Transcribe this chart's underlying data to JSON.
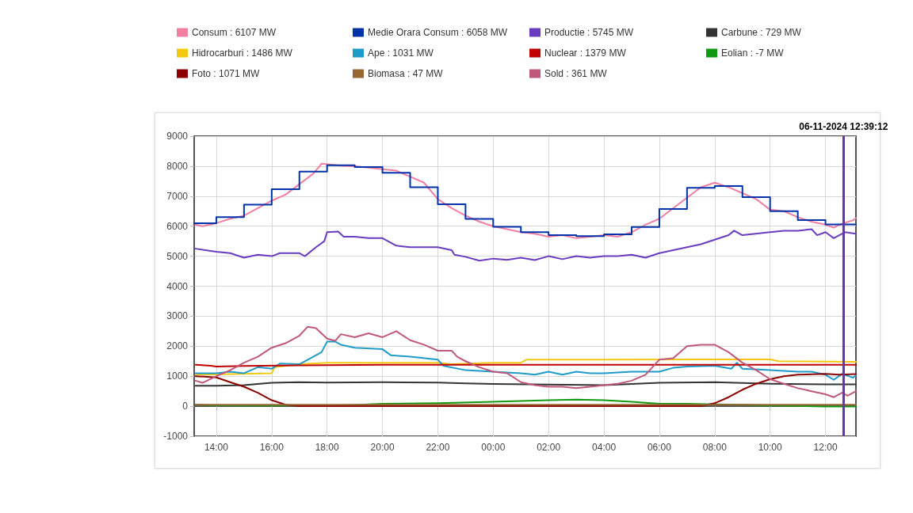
{
  "chart_data": {
    "type": "line",
    "xlim": [
      "2024-11-05T13:12",
      "2024-11-06T13:06"
    ],
    "xticks": [
      {
        "value": "2024-11-05T14:00",
        "label": "14:00"
      },
      {
        "value": "2024-11-05T16:00",
        "label": "16:00"
      },
      {
        "value": "2024-11-05T18:00",
        "label": "18:00"
      },
      {
        "value": "2024-11-05T20:00",
        "label": "20:00"
      },
      {
        "value": "2024-11-05T22:00",
        "label": "22:00"
      },
      {
        "value": "2024-11-06T00:00",
        "label": "00:00"
      },
      {
        "value": "2024-11-06T02:00",
        "label": "02:00"
      },
      {
        "value": "2024-11-06T04:00",
        "label": "04:00"
      },
      {
        "value": "2024-11-06T06:00",
        "label": "06:00"
      },
      {
        "value": "2024-11-06T08:00",
        "label": "08:00"
      },
      {
        "value": "2024-11-06T10:00",
        "label": "10:00"
      },
      {
        "value": "2024-11-06T12:00",
        "label": "12:00"
      }
    ],
    "ylim": [
      -1000,
      9000
    ],
    "yticks": [
      -1000,
      0,
      1000,
      2000,
      3000,
      4000,
      5000,
      6000,
      7000,
      8000,
      9000
    ],
    "grid": true,
    "legend": "top",
    "marker": "none",
    "line_style": "solid",
    "ref_lines": [
      {
        "axis": "x",
        "value": "2024-11-06T12:39",
        "label": "06-11-2024 12:39:12",
        "color": "#6633bb"
      }
    ],
    "series": [
      {
        "name": "Consum : 6107 MW",
        "color": "#f07fa0",
        "x": [
          "2024-11-05T13:15",
          "2024-11-05T13:30",
          "2024-11-05T14:00",
          "2024-11-05T14:30",
          "2024-11-05T15:00",
          "2024-11-05T15:30",
          "2024-11-05T16:00",
          "2024-11-05T16:30",
          "2024-11-05T17:00",
          "2024-11-05T17:30",
          "2024-11-05T17:48",
          "2024-11-05T18:30",
          "2024-11-05T19:00",
          "2024-11-05T19:30",
          "2024-11-05T20:00",
          "2024-11-05T20:30",
          "2024-11-05T21:00",
          "2024-11-05T21:30",
          "2024-11-05T22:00",
          "2024-11-05T22:30",
          "2024-11-05T23:00",
          "2024-11-05T23:30",
          "2024-11-06T00:00",
          "2024-11-06T00:30",
          "2024-11-06T01:00",
          "2024-11-06T01:30",
          "2024-11-06T02:00",
          "2024-11-06T02:30",
          "2024-11-06T03:00",
          "2024-11-06T03:30",
          "2024-11-06T04:00",
          "2024-11-06T04:30",
          "2024-11-06T05:00",
          "2024-11-06T05:30",
          "2024-11-06T06:00",
          "2024-11-06T06:30",
          "2024-11-06T07:00",
          "2024-11-06T07:30",
          "2024-11-06T08:00",
          "2024-11-06T08:30",
          "2024-11-06T09:00",
          "2024-11-06T09:30",
          "2024-11-06T10:00",
          "2024-11-06T10:30",
          "2024-11-06T11:00",
          "2024-11-06T11:30",
          "2024-11-06T12:00",
          "2024-11-06T12:18",
          "2024-11-06T12:30",
          "2024-11-06T13:00",
          "2024-11-06T13:06"
        ],
        "values": [
          6050,
          6000,
          6100,
          6250,
          6350,
          6600,
          6850,
          7050,
          7400,
          7750,
          8080,
          8020,
          8000,
          7950,
          7900,
          7850,
          7650,
          7450,
          6900,
          6600,
          6350,
          6150,
          6000,
          5900,
          5800,
          5750,
          5650,
          5700,
          5600,
          5650,
          5700,
          5650,
          5800,
          6050,
          6250,
          6600,
          6950,
          7300,
          7450,
          7300,
          7100,
          6900,
          6550,
          6500,
          6300,
          6150,
          6050,
          5950,
          6050,
          6200,
          6270
        ]
      },
      {
        "name": "Medie Orara Consum : 6058 MW",
        "color": "#0033aa",
        "type": "step",
        "x": [
          "2024-11-05T13:12",
          "2024-11-05T14:00",
          "2024-11-05T15:00",
          "2024-11-05T16:00",
          "2024-11-05T17:00",
          "2024-11-05T18:00",
          "2024-11-05T19:00",
          "2024-11-05T20:00",
          "2024-11-05T21:00",
          "2024-11-05T22:00",
          "2024-11-05T23:00",
          "2024-11-06T00:00",
          "2024-11-06T01:00",
          "2024-11-06T02:00",
          "2024-11-06T03:00",
          "2024-11-06T04:00",
          "2024-11-06T05:00",
          "2024-11-06T06:00",
          "2024-11-06T07:00",
          "2024-11-06T08:00",
          "2024-11-06T09:00",
          "2024-11-06T10:00",
          "2024-11-06T11:00",
          "2024-11-06T12:00",
          "2024-11-06T13:06"
        ],
        "values": [
          6100,
          6300,
          6720,
          7230,
          7820,
          8030,
          7970,
          7780,
          7300,
          6730,
          6240,
          5980,
          5800,
          5700,
          5670,
          5730,
          5970,
          6570,
          7280,
          7340,
          6970,
          6500,
          6200,
          6060,
          6060
        ]
      },
      {
        "name": "Productie : 5745 MW",
        "color": "#6a3cc0",
        "x": [
          "2024-11-05T13:15",
          "2024-11-05T14:00",
          "2024-11-05T14:30",
          "2024-11-05T15:00",
          "2024-11-05T15:30",
          "2024-11-05T16:00",
          "2024-11-05T16:18",
          "2024-11-05T17:00",
          "2024-11-05T17:12",
          "2024-11-05T17:36",
          "2024-11-05T17:54",
          "2024-11-05T18:00",
          "2024-11-05T18:24",
          "2024-11-05T18:36",
          "2024-11-05T19:00",
          "2024-11-05T19:30",
          "2024-11-05T20:00",
          "2024-11-05T20:30",
          "2024-11-05T21:00",
          "2024-11-05T22:00",
          "2024-11-05T22:30",
          "2024-11-05T22:36",
          "2024-11-05T23:00",
          "2024-11-05T23:30",
          "2024-11-06T00:00",
          "2024-11-06T00:30",
          "2024-11-06T01:00",
          "2024-11-06T01:30",
          "2024-11-06T02:00",
          "2024-11-06T02:30",
          "2024-11-06T03:00",
          "2024-11-06T03:30",
          "2024-11-06T04:00",
          "2024-11-06T04:30",
          "2024-11-06T05:00",
          "2024-11-06T05:30",
          "2024-11-06T06:00",
          "2024-11-06T06:30",
          "2024-11-06T07:00",
          "2024-11-06T07:30",
          "2024-11-06T08:00",
          "2024-11-06T08:30",
          "2024-11-06T08:42",
          "2024-11-06T09:00",
          "2024-11-06T10:00",
          "2024-11-06T10:30",
          "2024-11-06T11:00",
          "2024-11-06T11:30",
          "2024-11-06T11:42",
          "2024-11-06T12:00",
          "2024-11-06T12:18",
          "2024-11-06T12:42",
          "2024-11-06T13:06"
        ],
        "values": [
          5250,
          5150,
          5100,
          4950,
          5050,
          5000,
          5100,
          5100,
          5000,
          5300,
          5500,
          5800,
          5820,
          5650,
          5650,
          5600,
          5600,
          5350,
          5300,
          5300,
          5200,
          5050,
          4980,
          4850,
          4920,
          4880,
          4950,
          4870,
          5000,
          4900,
          5000,
          4950,
          5000,
          5000,
          5050,
          4950,
          5100,
          5200,
          5300,
          5400,
          5550,
          5700,
          5850,
          5700,
          5800,
          5850,
          5850,
          5900,
          5700,
          5800,
          5600,
          5800,
          5750
        ]
      },
      {
        "name": "Carbune : 729 MW",
        "color": "#333333",
        "x": [
          "2024-11-05T13:15",
          "2024-11-05T14:00",
          "2024-11-05T15:00",
          "2024-11-05T16:00",
          "2024-11-05T17:00",
          "2024-11-05T18:00",
          "2024-11-05T20:00",
          "2024-11-05T22:00",
          "2024-11-05T23:00",
          "2024-11-06T00:00",
          "2024-11-06T02:00",
          "2024-11-06T04:00",
          "2024-11-06T06:00",
          "2024-11-06T08:00",
          "2024-11-06T10:00",
          "2024-11-06T12:00",
          "2024-11-06T13:06"
        ],
        "values": [
          680,
          680,
          700,
          780,
          800,
          790,
          800,
          790,
          760,
          740,
          720,
          700,
          780,
          800,
          750,
          730,
          730
        ]
      },
      {
        "name": "Hidrocarburi : 1486 MW",
        "color": "#f2c811",
        "x": [
          "2024-11-05T13:15",
          "2024-11-05T16:00",
          "2024-11-05T16:06",
          "2024-11-05T17:00",
          "2024-11-05T18:00",
          "2024-11-05T22:00",
          "2024-11-05T22:30",
          "2024-11-06T00:00",
          "2024-11-06T01:00",
          "2024-11-06T01:12",
          "2024-11-06T08:00",
          "2024-11-06T10:00",
          "2024-11-06T10:18",
          "2024-11-06T13:06"
        ],
        "values": [
          1050,
          1100,
          1300,
          1400,
          1450,
          1450,
          1400,
          1450,
          1450,
          1550,
          1560,
          1560,
          1500,
          1480
        ]
      },
      {
        "name": "Ape : 1031 MW",
        "color": "#1e9bc8",
        "x": [
          "2024-11-05T13:15",
          "2024-11-05T14:00",
          "2024-11-05T14:30",
          "2024-11-05T15:00",
          "2024-11-05T15:30",
          "2024-11-05T16:00",
          "2024-11-05T16:18",
          "2024-11-05T17:00",
          "2024-11-05T17:30",
          "2024-11-05T17:48",
          "2024-11-05T18:00",
          "2024-11-05T18:18",
          "2024-11-05T18:30",
          "2024-11-05T19:00",
          "2024-11-05T20:00",
          "2024-11-05T20:18",
          "2024-11-05T21:00",
          "2024-11-05T22:00",
          "2024-11-05T22:12",
          "2024-11-05T23:00",
          "2024-11-06T00:00",
          "2024-11-06T01:00",
          "2024-11-06T01:30",
          "2024-11-06T02:00",
          "2024-11-06T02:30",
          "2024-11-06T03:00",
          "2024-11-06T03:30",
          "2024-11-06T04:00",
          "2024-11-06T05:00",
          "2024-11-06T06:00",
          "2024-11-06T06:30",
          "2024-11-06T07:00",
          "2024-11-06T08:00",
          "2024-11-06T08:36",
          "2024-11-06T08:48",
          "2024-11-06T09:00",
          "2024-11-06T10:00",
          "2024-11-06T11:00",
          "2024-11-06T11:30",
          "2024-11-06T12:00",
          "2024-11-06T12:18",
          "2024-11-06T12:36",
          "2024-11-06T13:00",
          "2024-11-06T13:06"
        ],
        "values": [
          1100,
          1100,
          1150,
          1100,
          1300,
          1250,
          1420,
          1400,
          1650,
          1800,
          2150,
          2150,
          2050,
          1950,
          1900,
          1700,
          1650,
          1550,
          1350,
          1200,
          1150,
          1100,
          1050,
          1150,
          1050,
          1150,
          1100,
          1100,
          1150,
          1150,
          1280,
          1320,
          1350,
          1250,
          1450,
          1250,
          1200,
          1150,
          1150,
          1050,
          880,
          1080,
          950,
          1030
        ]
      },
      {
        "name": "Nuclear : 1379 MW",
        "color": "#c00000",
        "x": [
          "2024-11-05T13:15",
          "2024-11-05T13:48",
          "2024-11-05T14:00",
          "2024-11-05T15:00",
          "2024-11-05T17:00",
          "2024-11-05T20:00",
          "2024-11-06T13:06"
        ],
        "values": [
          1380,
          1350,
          1320,
          1340,
          1360,
          1380,
          1380
        ]
      },
      {
        "name": "Eolian : -7 MW",
        "color": "#119911",
        "x": [
          "2024-11-05T13:15",
          "2024-11-05T14:00",
          "2024-11-05T16:00",
          "2024-11-05T18:00",
          "2024-11-05T19:00",
          "2024-11-05T20:00",
          "2024-11-05T22:00",
          "2024-11-06T00:00",
          "2024-11-06T02:00",
          "2024-11-06T03:00",
          "2024-11-06T04:00",
          "2024-11-06T05:00",
          "2024-11-06T06:00",
          "2024-11-06T07:00",
          "2024-11-06T08:00",
          "2024-11-06T09:00",
          "2024-11-06T10:00",
          "2024-11-06T12:00",
          "2024-11-06T13:06"
        ],
        "values": [
          50,
          30,
          20,
          20,
          40,
          80,
          100,
          150,
          200,
          220,
          200,
          150,
          80,
          80,
          60,
          50,
          20,
          -10,
          -10
        ]
      },
      {
        "name": "Foto : 1071 MW",
        "color": "#8b0000",
        "x": [
          "2024-11-05T13:15",
          "2024-11-05T14:00",
          "2024-11-05T14:30",
          "2024-11-05T15:00",
          "2024-11-05T15:30",
          "2024-11-05T16:00",
          "2024-11-05T16:30",
          "2024-11-05T17:00",
          "2024-11-06T07:30",
          "2024-11-06T08:00",
          "2024-11-06T08:30",
          "2024-11-06T09:00",
          "2024-11-06T09:30",
          "2024-11-06T10:00",
          "2024-11-06T10:30",
          "2024-11-06T11:00",
          "2024-11-06T12:00",
          "2024-11-06T12:30",
          "2024-11-06T13:06"
        ],
        "values": [
          1000,
          960,
          800,
          650,
          450,
          200,
          50,
          0,
          0,
          100,
          300,
          550,
          750,
          900,
          1000,
          1050,
          1080,
          1050,
          1070
        ]
      },
      {
        "name": "Biomasa : 47 MW",
        "color": "#996633",
        "x": [
          "2024-11-05T13:15",
          "2024-11-06T13:06"
        ],
        "values": [
          50,
          50
        ]
      },
      {
        "name": "Sold : 361 MW",
        "color": "#c0587a",
        "x": [
          "2024-11-05T13:15",
          "2024-11-05T13:30",
          "2024-11-05T14:00",
          "2024-11-05T14:30",
          "2024-11-05T15:00",
          "2024-11-05T15:30",
          "2024-11-05T16:00",
          "2024-11-05T16:30",
          "2024-11-05T17:00",
          "2024-11-05T17:18",
          "2024-11-05T17:36",
          "2024-11-05T18:00",
          "2024-11-05T18:18",
          "2024-11-05T18:30",
          "2024-11-05T19:00",
          "2024-11-05T19:30",
          "2024-11-05T20:00",
          "2024-11-05T20:30",
          "2024-11-05T21:00",
          "2024-11-05T21:30",
          "2024-11-05T22:00",
          "2024-11-05T22:30",
          "2024-11-05T22:42",
          "2024-11-05T23:00",
          "2024-11-05T23:30",
          "2024-11-06T00:00",
          "2024-11-06T00:30",
          "2024-11-06T01:00",
          "2024-11-06T01:30",
          "2024-11-06T02:00",
          "2024-11-06T02:30",
          "2024-11-06T03:00",
          "2024-11-06T03:30",
          "2024-11-06T04:00",
          "2024-11-06T04:30",
          "2024-11-06T05:00",
          "2024-11-06T05:30",
          "2024-11-06T06:00",
          "2024-11-06T06:30",
          "2024-11-06T07:00",
          "2024-11-06T07:30",
          "2024-11-06T08:00",
          "2024-11-06T08:30",
          "2024-11-06T09:00",
          "2024-11-06T09:30",
          "2024-11-06T10:00",
          "2024-11-06T10:30",
          "2024-11-06T11:00",
          "2024-11-06T11:30",
          "2024-11-06T12:00",
          "2024-11-06T12:18",
          "2024-11-06T12:36",
          "2024-11-06T12:48",
          "2024-11-06T13:06"
        ],
        "values": [
          850,
          780,
          1000,
          1200,
          1450,
          1650,
          1950,
          2100,
          2350,
          2650,
          2600,
          2250,
          2180,
          2400,
          2300,
          2430,
          2300,
          2500,
          2200,
          2050,
          1850,
          1850,
          1650,
          1500,
          1300,
          1150,
          1100,
          800,
          700,
          650,
          650,
          600,
          650,
          700,
          750,
          850,
          1050,
          1550,
          1600,
          2000,
          2050,
          2050,
          1800,
          1450,
          1200,
          900,
          750,
          600,
          500,
          400,
          300,
          450,
          350,
          500
        ]
      }
    ]
  }
}
